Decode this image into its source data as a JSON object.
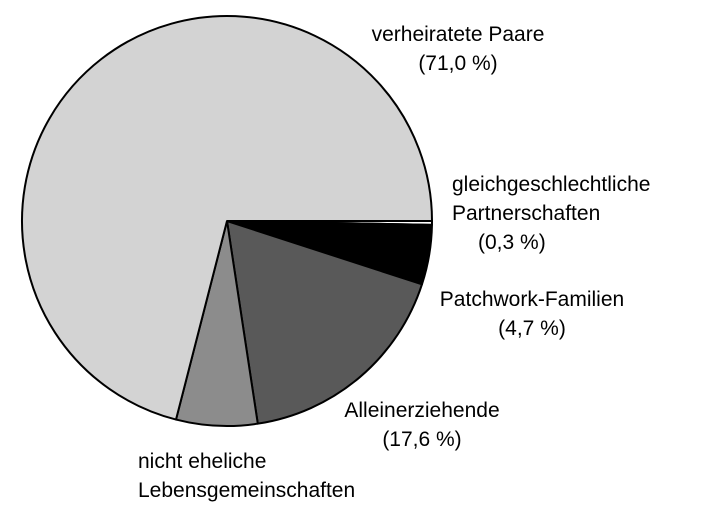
{
  "chart_data": {
    "type": "pie",
    "categories": [
      "gleichgeschlechtliche Partnerschaften",
      "Patchwork-Familien",
      "Alleinerziehende",
      "nicht eheliche Lebensgemeinschaften",
      "verheiratete Paare"
    ],
    "values": [
      0.3,
      4.7,
      17.6,
      6.4,
      71.0
    ],
    "value_labels": [
      "(0,3 %)",
      "(4,7 %)",
      "(17,6 %)",
      null,
      "(71,0 %)"
    ],
    "colors": [
      "#ffffff",
      "#000000",
      "#595959",
      "#8c8c8c",
      "#d3d3d3"
    ]
  }
}
